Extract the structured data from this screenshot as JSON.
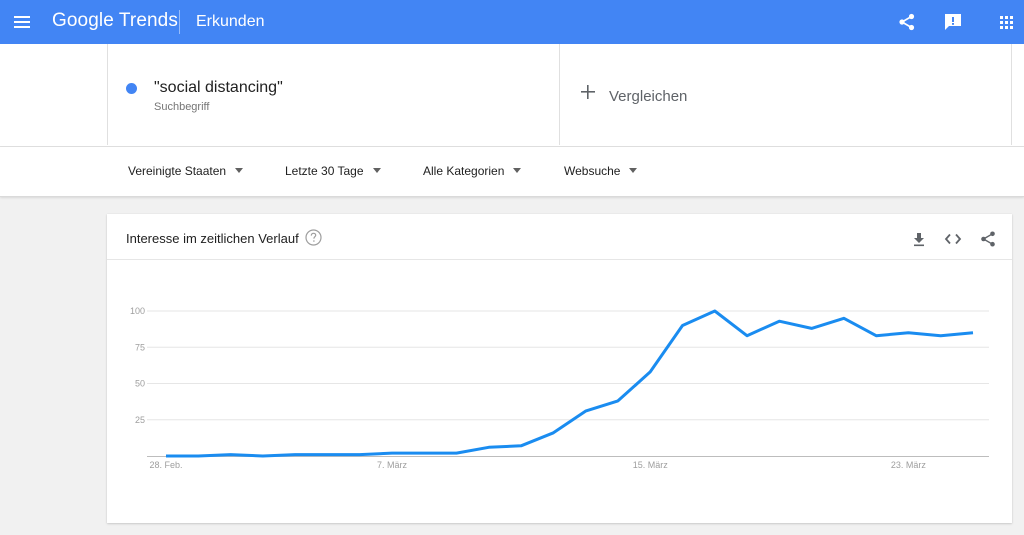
{
  "header": {
    "logo_google": "Google",
    "logo_trends": "Trends",
    "section": "Erkunden",
    "icons": [
      "menu-icon",
      "share-icon",
      "feedback-icon",
      "apps-icon"
    ],
    "bar_color": "#4285f4"
  },
  "search": {
    "term": "\"social distancing\"",
    "term_type": "Suchbegriff",
    "term_color": "#4285f4",
    "compare_label": "Vergleichen"
  },
  "filters": {
    "region": "Vereinigte Staaten",
    "time": "Letzte 30 Tage",
    "category": "Alle Kategorien",
    "property": "Websuche"
  },
  "card": {
    "title": "Interesse im zeitlichen Verlauf",
    "icons": [
      "help-icon",
      "download-icon",
      "embed-icon",
      "share-icon"
    ]
  },
  "chart_data": {
    "type": "line",
    "x_tick_labels": [
      "28. Feb.",
      "7. März",
      "15. März",
      "23. März"
    ],
    "y_ticks": [
      25,
      50,
      75,
      100
    ],
    "ylim": [
      0,
      100
    ],
    "grid": true,
    "line_color": "#1a8cf0",
    "series": [
      {
        "values": [
          0,
          0,
          1,
          0,
          1,
          1,
          1,
          2,
          2,
          2,
          6,
          7,
          16,
          31,
          38,
          58,
          90,
          100,
          83,
          93,
          88,
          95,
          83,
          85,
          83,
          85
        ]
      }
    ]
  }
}
